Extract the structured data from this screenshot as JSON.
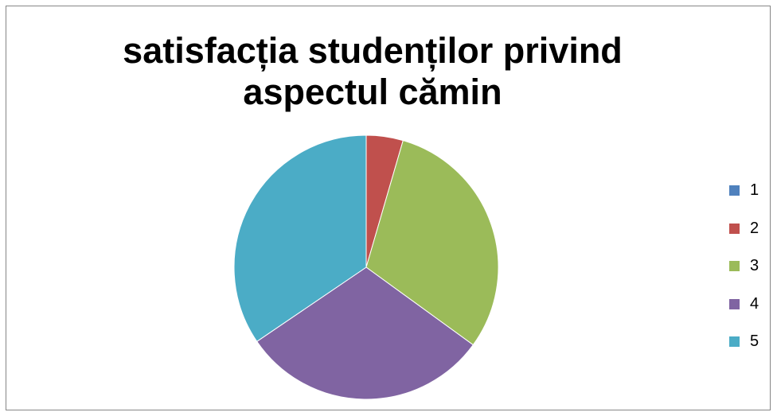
{
  "chart_data": {
    "type": "pie",
    "title_lines": [
      "satisfacția studenților privind",
      "aspectul cămin"
    ],
    "categories": [
      "1",
      "2",
      "3",
      "4",
      "5"
    ],
    "values": [
      0,
      4.5,
      30.5,
      30.5,
      34.5
    ],
    "colors": [
      "#4F81BD",
      "#C0504D",
      "#9BBB59",
      "#8064A2",
      "#4BACC6"
    ],
    "legend_position": "right",
    "start_angle_deg": 0,
    "direction": "clockwise"
  }
}
